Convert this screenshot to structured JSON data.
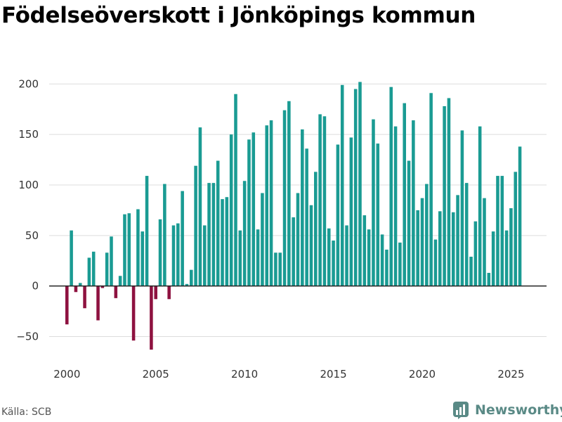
{
  "title": "Födelseöverskott i Jönköpings kommun",
  "source": "Källa: SCB",
  "brand": "Newsworthy",
  "colors": {
    "positive": "#1a9b93",
    "negative": "#8e1240",
    "grid": "#dddddd",
    "zero_line": "#222222",
    "brand": "#5a8a86"
  },
  "chart_data": {
    "type": "bar",
    "title": "Födelseöverskott i Jönköpings kommun",
    "xlabel": "",
    "ylabel": "",
    "x_start": 2000.0,
    "x_step": 0.25,
    "xlim": [
      1999.0,
      2027.0
    ],
    "ylim": [
      -65,
      210
    ],
    "xticks": [
      2000,
      2005,
      2010,
      2015,
      2020,
      2025
    ],
    "yticks": [
      -50,
      0,
      50,
      100,
      150,
      200
    ],
    "ytick_labels": [
      "−50",
      "0",
      "50",
      "100",
      "150",
      "200"
    ],
    "values": [
      -38,
      55,
      -6,
      3,
      -22,
      28,
      34,
      -34,
      -2,
      33,
      49,
      -12,
      10,
      71,
      72,
      -54,
      76,
      54,
      109,
      -63,
      -13,
      66,
      101,
      -13,
      60,
      62,
      94,
      2,
      16,
      119,
      157,
      60,
      102,
      102,
      124,
      86,
      88,
      150,
      190,
      55,
      104,
      145,
      152,
      56,
      92,
      159,
      164,
      33,
      33,
      174,
      183,
      68,
      92,
      155,
      136,
      80,
      113,
      170,
      168,
      57,
      45,
      140,
      199,
      60,
      147,
      195,
      202,
      70,
      56,
      165,
      141,
      51,
      36,
      197,
      158,
      43,
      181,
      124,
      164,
      75,
      87,
      101,
      191,
      46,
      74,
      178,
      186,
      73,
      90,
      154,
      102,
      29,
      64,
      158,
      87,
      13,
      54,
      109,
      109,
      55,
      77,
      113,
      138
    ]
  }
}
